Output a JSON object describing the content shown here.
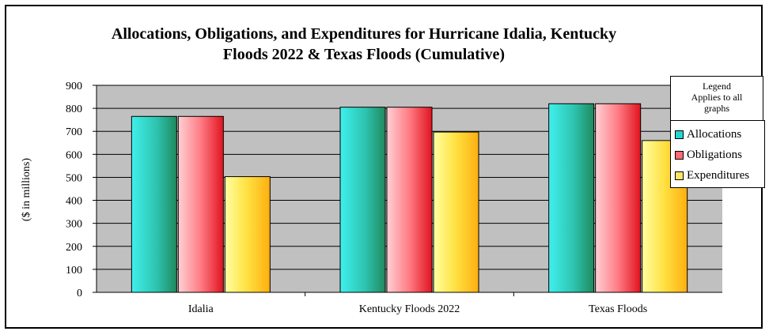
{
  "chart_data": {
    "type": "bar",
    "title": "Allocations, Obligations, and Expenditures for Hurricane Idalia, Kentucky Floods 2022 & Texas Floods (Cumulative)",
    "title_lines": [
      "Allocations, Obligations, and Expenditures for Hurricane Idalia, Kentucky",
      "Floods 2022 & Texas Floods (Cumulative)"
    ],
    "xlabel": "",
    "ylabel": "($ in millions)",
    "ylim": [
      0,
      900
    ],
    "yticks": [
      0,
      100,
      200,
      300,
      400,
      500,
      600,
      700,
      800,
      900
    ],
    "grid": true,
    "legend_placement": "top-right",
    "categories": [
      "Idalia",
      "Kentucky Floods 2022",
      "Texas Floods"
    ],
    "series": [
      {
        "name": "Allocations",
        "values": [
          765,
          805,
          820
        ],
        "color": "#2fb8a5"
      },
      {
        "name": "Obligations",
        "values": [
          765,
          805,
          820
        ],
        "color": "#ff4d5a"
      },
      {
        "name": "Expenditures",
        "values": [
          503,
          697,
          660
        ],
        "color": "#ffd23a"
      }
    ]
  },
  "legend": {
    "header_lines": [
      "Legend",
      "Applies to all",
      "graphs"
    ]
  },
  "colors": {
    "plot_background": "#c0c0c0",
    "gridline": "#000000"
  }
}
